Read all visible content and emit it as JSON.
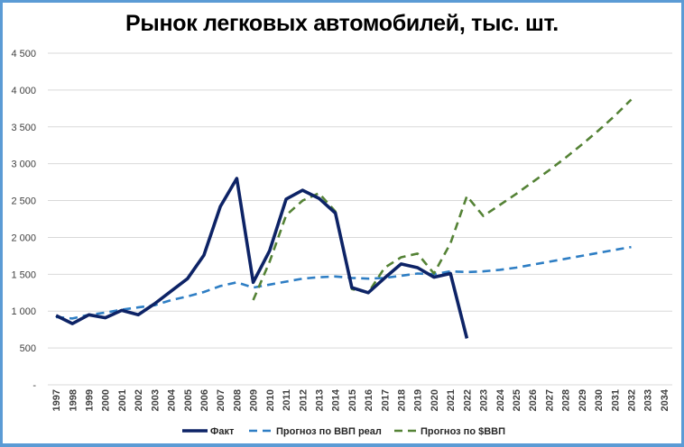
{
  "chart_data": {
    "type": "line",
    "title": "Рынок легковых автомобилей, тыс. шт.",
    "xlabel": "",
    "ylabel": "",
    "ylim": [
      0,
      4500
    ],
    "yticks": [
      0,
      500,
      1000,
      1500,
      2000,
      2500,
      3000,
      3500,
      4000,
      4500
    ],
    "ytick_labels": [
      "-",
      "500",
      "1 000",
      "1 500",
      "2 000",
      "2 500",
      "3 000",
      "3 500",
      "4 000",
      "4 500"
    ],
    "grid": true,
    "legend_position": "bottom",
    "categories": [
      "1997",
      "1998",
      "1999",
      "2000",
      "2001",
      "2002",
      "2003",
      "2004",
      "2005",
      "2006",
      "2007",
      "2008",
      "2009",
      "2010",
      "2011",
      "2012",
      "2013",
      "2014",
      "2015",
      "2016",
      "2017",
      "2018",
      "2019",
      "2020",
      "2021",
      "2022",
      "2023",
      "2024",
      "2025",
      "2026",
      "2027",
      "2028",
      "2029",
      "2030",
      "2031",
      "2032",
      "2033",
      "2034"
    ],
    "series": [
      {
        "name": "Факт",
        "style": "solid",
        "color": "#0d2366",
        "values": [
          940,
          830,
          950,
          910,
          1010,
          950,
          1100,
          1270,
          1440,
          1760,
          2420,
          2800,
          1390,
          1820,
          2520,
          2640,
          2530,
          2330,
          1320,
          1250,
          1450,
          1640,
          1590,
          1460,
          1510,
          630,
          null,
          null,
          null,
          null,
          null,
          null,
          null,
          null,
          null,
          null,
          null,
          null
        ]
      },
      {
        "name": "Прогноз по ВВП реал",
        "style": "dashed",
        "color": "#2e7ec4",
        "values": [
          920,
          900,
          950,
          980,
          1020,
          1050,
          1080,
          1150,
          1200,
          1260,
          1340,
          1390,
          1320,
          1360,
          1400,
          1440,
          1460,
          1470,
          1450,
          1440,
          1450,
          1480,
          1510,
          1500,
          1540,
          1530,
          1540,
          1560,
          1590,
          1630,
          1670,
          1710,
          1750,
          1790,
          1830,
          1870,
          null,
          null
        ]
      },
      {
        "name": "Прогноз по $ВВП",
        "style": "dashed",
        "color": "#548235",
        "values": [
          null,
          null,
          null,
          null,
          null,
          null,
          null,
          null,
          null,
          null,
          null,
          null,
          1150,
          1670,
          2300,
          2500,
          2600,
          2350,
          1300,
          1250,
          1590,
          1730,
          1780,
          1510,
          1920,
          2560,
          2290,
          2440,
          2590,
          2750,
          2910,
          3080,
          3260,
          3450,
          3650,
          3870,
          null,
          null
        ]
      }
    ]
  },
  "legend": [
    {
      "label": "Факт"
    },
    {
      "label": "Прогноз по ВВП реал"
    },
    {
      "label": "Прогноз по $ВВП"
    }
  ],
  "colors": {
    "frame": "#5b9bd5",
    "grid": "#d9d9d9"
  }
}
